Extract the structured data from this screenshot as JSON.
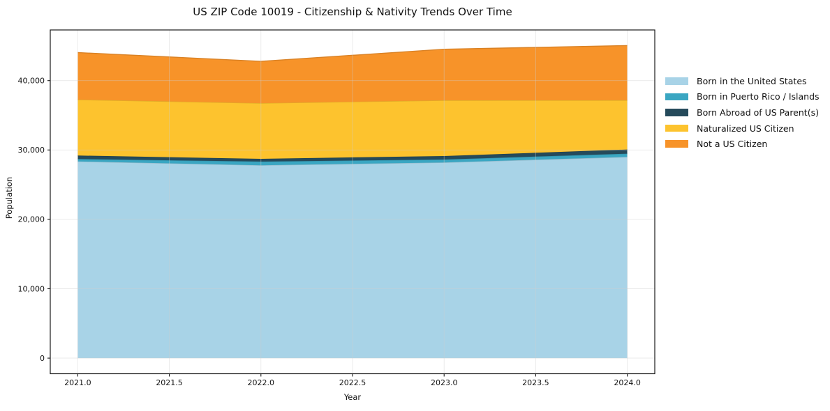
{
  "page": {
    "background_color": "#ffffff",
    "text_color": "#111111"
  },
  "chart_data": {
    "type": "area",
    "stacked": true,
    "title": "US ZIP Code 10019 - Citizenship & Nativity Trends Over Time",
    "xlabel": "Year",
    "ylabel": "Population",
    "x": [
      2021,
      2022,
      2023,
      2024
    ],
    "series": [
      {
        "name": "Born in the United States",
        "color": "#a8d3e7",
        "values": [
          28350,
          27800,
          28200,
          29000
        ]
      },
      {
        "name": "Born in Puerto Rico / Islands",
        "color": "#3aa6c2",
        "values": [
          350,
          530,
          430,
          470
        ]
      },
      {
        "name": "Born Abroad of US Parent(s)",
        "color": "#254a5b",
        "values": [
          500,
          400,
          500,
          600
        ]
      },
      {
        "name": "Naturalized US Citizen",
        "color": "#fdc32e",
        "values": [
          8060,
          8020,
          8030,
          7100
        ]
      },
      {
        "name": "Not a US Citizen",
        "color": "#f79329",
        "values": [
          6780,
          6030,
          7360,
          7880
        ]
      }
    ],
    "totals": [
      44040,
      42780,
      44520,
      45050
    ],
    "xlim": [
      2020.85,
      2024.15
    ],
    "ylim": [
      -2250,
      47300
    ],
    "xticks": [
      2021.0,
      2021.5,
      2022.0,
      2022.5,
      2023.0,
      2023.5,
      2024.0
    ],
    "xtick_labels": [
      "2021.0",
      "2021.5",
      "2022.0",
      "2022.5",
      "2023.0",
      "2023.5",
      "2024.0"
    ],
    "yticks": [
      0,
      10000,
      20000,
      30000,
      40000
    ],
    "ytick_labels": [
      "0",
      "10,000",
      "20,000",
      "30,000",
      "40,000"
    ],
    "grid": true,
    "grid_color": "#cfcfcf",
    "axis_color": "#1a1a1a",
    "legend_position": "right-outside"
  }
}
